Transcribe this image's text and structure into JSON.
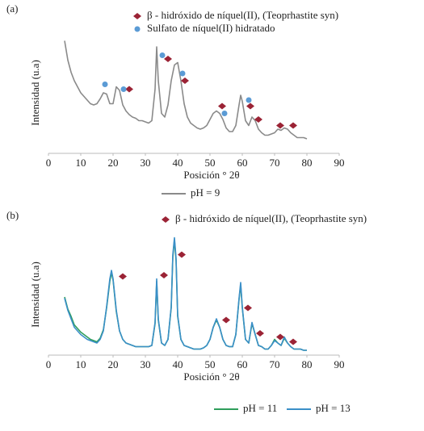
{
  "chart_data": [
    {
      "type": "line",
      "panel": "(a)",
      "xlabel": "Posición ° 2θ",
      "ylabel": "Intensidad (u.a)",
      "xlim": [
        0,
        90
      ],
      "xticks": [
        0,
        10,
        20,
        30,
        40,
        50,
        60,
        70,
        80,
        90
      ],
      "ylim": [
        0,
        100
      ],
      "series": [
        {
          "name": "pH = 9",
          "color": "#8a8a8a",
          "marker": "line",
          "x": [
            5,
            6,
            7,
            8,
            9,
            10,
            11,
            12,
            13,
            14,
            15,
            16,
            17,
            18,
            19,
            20,
            21,
            22,
            23,
            24,
            25,
            26,
            27,
            28,
            29,
            30,
            31,
            32,
            33,
            33.5,
            34,
            35,
            36,
            37,
            38,
            39,
            40,
            41,
            42,
            43,
            44,
            45,
            46,
            47,
            48,
            49,
            50,
            51,
            52,
            53,
            54,
            55,
            56,
            57,
            58,
            59,
            59.5,
            60,
            61,
            62,
            63,
            64,
            65,
            66,
            67,
            68,
            69,
            70,
            71,
            72,
            73,
            74,
            75,
            76,
            77,
            78,
            79,
            80
          ],
          "values": [
            93,
            77,
            67,
            60,
            55,
            50,
            47,
            44,
            41,
            40,
            41,
            45,
            50,
            49,
            41,
            41,
            55,
            52,
            40,
            35,
            32,
            30,
            29,
            27,
            27,
            26,
            25,
            27,
            53,
            88,
            60,
            33,
            30,
            40,
            60,
            73,
            75,
            60,
            41,
            30,
            25,
            23,
            21,
            20,
            21,
            23,
            28,
            33,
            35,
            33,
            28,
            21,
            18,
            18,
            23,
            40,
            48,
            43,
            27,
            23,
            30,
            27,
            20,
            17,
            15,
            15,
            16,
            17,
            20,
            19,
            21,
            20,
            17,
            15,
            13,
            13,
            13,
            12
          ]
        },
        {
          "name": "β - hidróxido de níquel(II), (Teoprhastite syn)",
          "color": "#9b2335",
          "marker": "diamond",
          "x": [
            25,
            37,
            42.25,
            53.75,
            62.5,
            65,
            71.75,
            75.75
          ],
          "values": [
            53,
            78,
            60,
            39,
            39,
            28,
            23,
            23
          ]
        },
        {
          "name": "Sulfato de níquel(II) hidratado",
          "color": "#5b9bd5",
          "marker": "circle",
          "x": [
            17.5,
            23.25,
            35.25,
            41.5,
            54.5,
            62
          ],
          "values": [
            57,
            53,
            81,
            66,
            33,
            44
          ]
        }
      ]
    },
    {
      "type": "line",
      "panel": "(b)",
      "xlabel": "Posición ° 2θ",
      "ylabel": "Intensidad (u.a)",
      "xlim": [
        0,
        90
      ],
      "xticks": [
        0,
        10,
        20,
        30,
        40,
        50,
        60,
        70,
        80,
        90
      ],
      "ylim": [
        0,
        100
      ],
      "series": [
        {
          "name": "pH = 11",
          "color": "#2e9e5b",
          "marker": "line",
          "x": [
            5,
            6,
            7,
            8,
            9,
            10,
            11,
            12,
            13,
            14,
            15,
            16,
            17,
            18,
            19,
            19.5,
            20,
            21,
            22,
            23,
            24,
            25,
            26,
            27,
            28,
            29,
            30,
            31,
            32,
            33,
            33.5,
            34,
            35,
            36,
            37,
            38,
            38.5,
            39,
            39.5,
            40,
            41,
            42,
            43,
            44,
            45,
            46,
            47,
            48,
            49,
            50,
            51,
            52,
            53,
            54,
            55,
            56,
            57,
            58,
            59,
            59.5,
            60,
            61,
            62,
            63,
            64,
            65,
            66,
            67,
            68,
            69,
            70,
            71,
            72,
            73,
            74,
            75,
            76,
            77,
            78,
            79,
            80
          ],
          "values": [
            48,
            38,
            32,
            25,
            22,
            19,
            17,
            15,
            13,
            12,
            11,
            14,
            21,
            39,
            61,
            68,
            62,
            36,
            20,
            13,
            10,
            9,
            8,
            7,
            7,
            7,
            7,
            7,
            8,
            26,
            61,
            29,
            10,
            8,
            13,
            39,
            81,
            95,
            78,
            32,
            13,
            8,
            7,
            6,
            5,
            5,
            5,
            6,
            8,
            13,
            23,
            29,
            23,
            13,
            8,
            7,
            7,
            17,
            46,
            58,
            39,
            13,
            10,
            26,
            17,
            8,
            7,
            5,
            5,
            8,
            13,
            10,
            8,
            14,
            10,
            7,
            5,
            5,
            5,
            4,
            4
          ]
        },
        {
          "name": "pH = 13",
          "color": "#3a8fc8",
          "marker": "line",
          "x": [
            5,
            6,
            7,
            8,
            9,
            10,
            11,
            12,
            13,
            14,
            15,
            16,
            17,
            18,
            19,
            19.5,
            20,
            21,
            22,
            23,
            24,
            25,
            26,
            27,
            28,
            29,
            30,
            31,
            32,
            33,
            33.5,
            34,
            35,
            36,
            37,
            38,
            38.5,
            39,
            39.5,
            40,
            41,
            42,
            43,
            44,
            45,
            46,
            47,
            48,
            49,
            50,
            51,
            52,
            53,
            54,
            55,
            56,
            57,
            58,
            59,
            59.5,
            60,
            61,
            62,
            63,
            64,
            65,
            66,
            67,
            68,
            69,
            70,
            71,
            72,
            73,
            74,
            75,
            76,
            77,
            78,
            79,
            80
          ],
          "values": [
            47,
            37,
            30,
            23,
            20,
            17,
            15,
            13,
            12,
            11,
            10,
            13,
            20,
            40,
            63,
            70,
            63,
            37,
            20,
            13,
            10,
            9,
            8,
            7,
            7,
            7,
            7,
            7,
            8,
            27,
            63,
            30,
            10,
            8,
            13,
            40,
            83,
            97,
            80,
            33,
            13,
            8,
            7,
            6,
            5,
            5,
            5,
            6,
            8,
            13,
            23,
            30,
            23,
            13,
            8,
            7,
            7,
            17,
            47,
            60,
            40,
            13,
            10,
            27,
            17,
            8,
            7,
            5,
            5,
            8,
            12,
            10,
            8,
            15,
            10,
            7,
            5,
            5,
            5,
            4,
            4
          ]
        },
        {
          "name": "β - hidróxido de níquel(II), (Teoprhastite syn)",
          "color": "#9b2335",
          "marker": "diamond",
          "x": [
            23,
            35.75,
            41.25,
            55,
            61.75,
            65.5,
            71.75,
            75.75
          ],
          "values": [
            65,
            66,
            83,
            29,
            39,
            18,
            15,
            11
          ]
        }
      ]
    }
  ]
}
